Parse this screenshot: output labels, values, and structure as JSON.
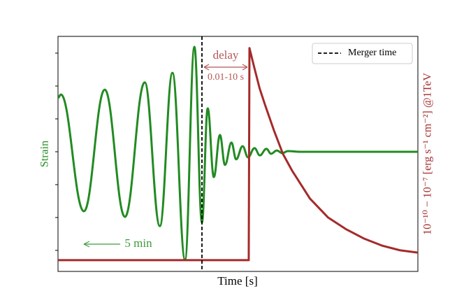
{
  "chart_data": {
    "type": "line",
    "xlabel": "Time [s]",
    "ylabel": "Strain",
    "y2label": "10⁻¹⁰ − 10⁻⁷ [erg s⁻¹ cm⁻²] @1TeV",
    "xlim": [
      0,
      100
    ],
    "ylim": [
      -3.64,
      3.51
    ],
    "yticks": [
      -3,
      -2,
      -1,
      0,
      1,
      2,
      3
    ],
    "y2lim": [
      0,
      1
    ],
    "legend": "upper right",
    "series": [
      {
        "color": "#228b22",
        "smooth": true,
        "x": [
          0,
          0.8,
          7.2,
          13.0,
          18.6,
          24.1,
          28.3,
          31.8,
          35.3,
          37.9,
          40.0,
          41.6,
          43.3,
          45.0,
          46.4,
          48.2,
          49.5,
          51.3,
          52.8,
          54.6,
          56.1,
          57.9,
          59.2,
          60.8,
          62.3,
          63.9,
          67.4,
          100
        ],
        "values": [
          1.64,
          1.74,
          -1.81,
          1.89,
          -1.98,
          2.11,
          -2.26,
          2.4,
          -3.28,
          3.19,
          -2.15,
          1.32,
          -0.77,
          0.51,
          -0.4,
          0.28,
          -0.23,
          0.17,
          -0.17,
          0.11,
          -0.11,
          0.09,
          -0.06,
          0.04,
          -0.04,
          0.02,
          0,
          0
        ]
      },
      {
        "color": "#a52a2a",
        "axis": "y2",
        "smooth": false,
        "x": [
          0,
          53.0,
          53.2,
          54.5,
          56,
          57.5,
          60,
          62.5,
          65,
          67.5,
          70,
          75,
          80,
          85,
          90,
          95,
          100
        ],
        "values": [
          0.048,
          0.048,
          0.95,
          0.87,
          0.78,
          0.71,
          0.6,
          0.5,
          0.43,
          0.37,
          0.31,
          0.23,
          0.18,
          0.14,
          0.11,
          0.09,
          0.08
        ]
      }
    ],
    "vline": {
      "name": "Merger time",
      "x": 40,
      "color": "#000000"
    },
    "annotations": [
      {
        "text": "delay",
        "color": "#b85555"
      },
      {
        "text": "0.01-10 s",
        "color": "#b85555"
      },
      {
        "text": "5 min",
        "color": "#3f9a3f"
      }
    ]
  }
}
